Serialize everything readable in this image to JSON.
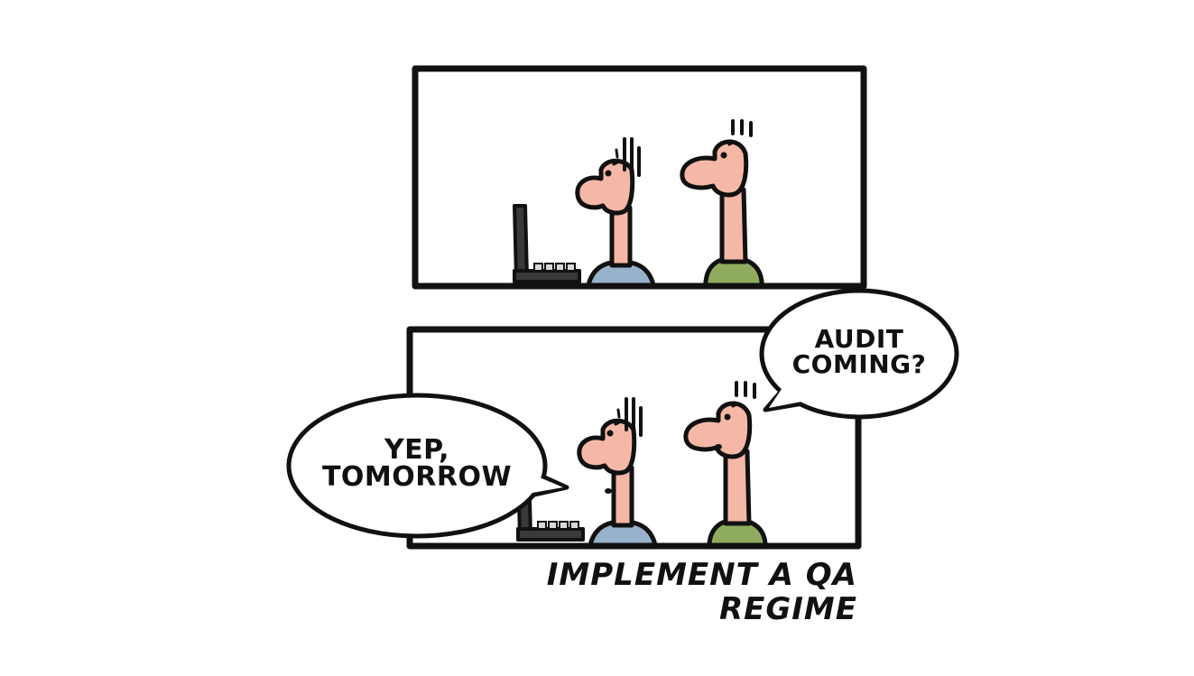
{
  "colors": {
    "ink": "#111111",
    "skin": "#f6b8a6",
    "shirt_blue": "#98b1cb",
    "shirt_green": "#8fab5d",
    "laptop": "#3a3a3a",
    "background": "#ffffff"
  },
  "bubbles": {
    "audit_line1": "AUDIT",
    "audit_line2": "COMING?",
    "yep_line1": "YEP,",
    "yep_line2": "TOMORROW"
  },
  "caption": {
    "line1": "IMPLEMENT A QA",
    "line2": "REGIME"
  }
}
